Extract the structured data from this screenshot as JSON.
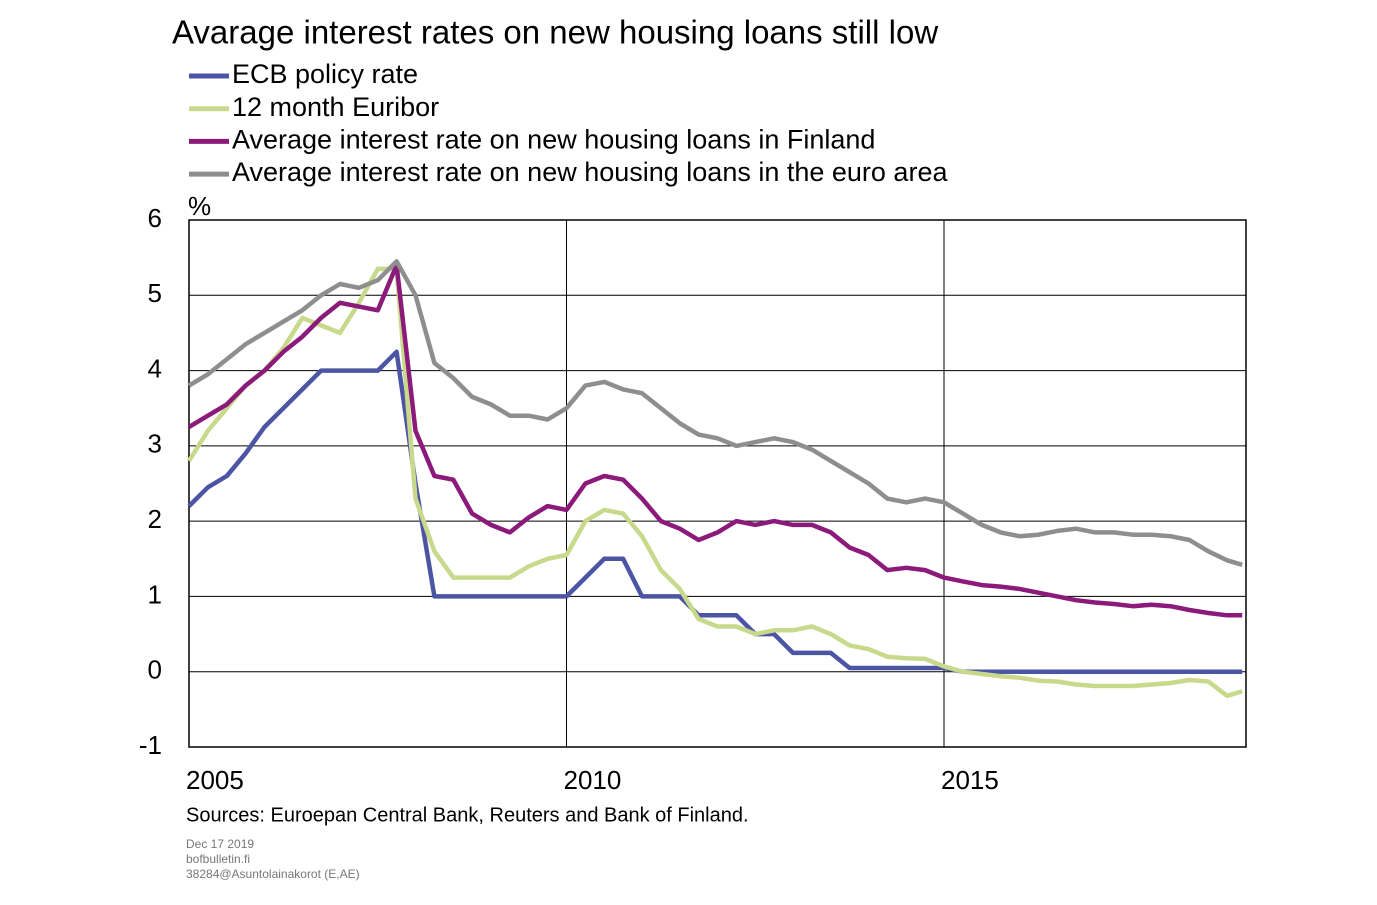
{
  "chart_data": {
    "type": "line",
    "title": "Avarage interest rates on new housing loans still low",
    "y_unit": "%",
    "source": "Sources: Euroepan Central Bank, Reuters and Bank of Finland.",
    "notes": [
      "Dec 17 2019",
      "bofbulletin.fi",
      "38284@Asuntolainakorot  (E,AE)"
    ],
    "x": [
      2005,
      2005.25,
      2005.5,
      2005.75,
      2006,
      2006.25,
      2006.5,
      2006.75,
      2007,
      2007.25,
      2007.5,
      2007.75,
      2008,
      2008.25,
      2008.5,
      2008.75,
      2009,
      2009.25,
      2009.5,
      2009.75,
      2010,
      2010.25,
      2010.5,
      2010.75,
      2011,
      2011.25,
      2011.5,
      2011.75,
      2012,
      2012.25,
      2012.5,
      2012.75,
      2013,
      2013.25,
      2013.5,
      2013.75,
      2014,
      2014.25,
      2014.5,
      2014.75,
      2015,
      2015.25,
      2015.5,
      2015.75,
      2016,
      2016.25,
      2016.5,
      2016.75,
      2017,
      2017.25,
      2017.5,
      2017.75,
      2018,
      2018.25,
      2018.5,
      2018.75,
      2018.95
    ],
    "series": [
      {
        "name": "ECB policy rate",
        "color": "#4b55a3",
        "values": [
          2.2,
          2.45,
          2.6,
          2.9,
          3.25,
          3.5,
          3.75,
          4,
          4,
          4,
          4,
          4.25,
          2.5,
          1,
          1,
          1,
          1,
          1,
          1,
          1,
          1,
          1.25,
          1.5,
          1.5,
          1,
          1,
          1,
          0.75,
          0.75,
          0.75,
          0.5,
          0.5,
          0.25,
          0.25,
          0.25,
          0.05,
          0.05,
          0.05,
          0.05,
          0.05,
          0.05,
          0,
          0,
          0,
          0,
          0,
          0,
          0,
          0,
          0,
          0,
          0,
          0,
          0,
          0,
          0,
          0
        ]
      },
      {
        "name": "12 month Euribor",
        "color": "#c9d98c",
        "values": [
          2.8,
          3.2,
          3.5,
          3.8,
          4.0,
          4.3,
          4.7,
          4.6,
          4.5,
          4.9,
          5.35,
          5.35,
          2.3,
          1.6,
          1.25,
          1.25,
          1.25,
          1.25,
          1.4,
          1.5,
          1.55,
          2.0,
          2.15,
          2.1,
          1.8,
          1.35,
          1.1,
          0.7,
          0.6,
          0.6,
          0.5,
          0.55,
          0.55,
          0.6,
          0.5,
          0.35,
          0.3,
          0.2,
          0.18,
          0.17,
          0.07,
          0,
          -0.03,
          -0.06,
          -0.08,
          -0.12,
          -0.13,
          -0.17,
          -0.19,
          -0.19,
          -0.19,
          -0.17,
          -0.15,
          -0.11,
          -0.13,
          -0.32,
          -0.26
        ]
      },
      {
        "name": "Average interest rate on new housing loans in Finland",
        "color": "#8c1a7b",
        "values": [
          3.25,
          3.4,
          3.55,
          3.8,
          4.0,
          4.25,
          4.45,
          4.7,
          4.9,
          4.85,
          4.8,
          5.4,
          3.2,
          2.6,
          2.55,
          2.1,
          1.95,
          1.85,
          2.05,
          2.2,
          2.15,
          2.5,
          2.6,
          2.55,
          2.3,
          2.0,
          1.9,
          1.75,
          1.85,
          2.0,
          1.95,
          2.0,
          1.95,
          1.95,
          1.85,
          1.65,
          1.55,
          1.35,
          1.38,
          1.35,
          1.25,
          1.2,
          1.15,
          1.13,
          1.1,
          1.05,
          1.0,
          0.95,
          0.92,
          0.9,
          0.87,
          0.89,
          0.87,
          0.82,
          0.78,
          0.75,
          0.75
        ]
      },
      {
        "name": "Average interest rate on new housing loans in the euro area",
        "color": "#8e8e8e",
        "values": [
          3.8,
          3.95,
          4.15,
          4.35,
          4.5,
          4.65,
          4.8,
          5.0,
          5.15,
          5.1,
          5.2,
          5.45,
          5.0,
          4.1,
          3.9,
          3.65,
          3.55,
          3.4,
          3.4,
          3.35,
          3.5,
          3.8,
          3.85,
          3.75,
          3.7,
          3.5,
          3.3,
          3.15,
          3.1,
          3.0,
          3.05,
          3.1,
          3.05,
          2.95,
          2.8,
          2.65,
          2.5,
          2.3,
          2.25,
          2.3,
          2.25,
          2.1,
          1.95,
          1.85,
          1.8,
          1.82,
          1.87,
          1.9,
          1.85,
          1.85,
          1.82,
          1.82,
          1.8,
          1.75,
          1.6,
          1.48,
          1.42
        ]
      }
    ],
    "xlim": [
      2005,
      2019
    ],
    "xticks": [
      2005,
      2010,
      2015
    ],
    "ylim": [
      -1,
      6
    ],
    "yticks": [
      -1,
      0,
      1,
      2,
      3,
      4,
      5,
      6
    ],
    "grid": true
  }
}
